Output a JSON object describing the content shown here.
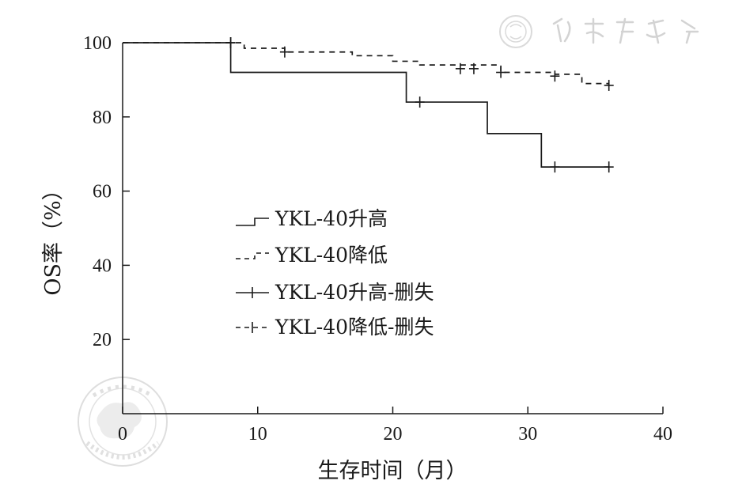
{
  "chart_data": {
    "type": "line",
    "xlabel": "生存时间（月）",
    "ylabel": "OS率（%）",
    "xlim": [
      0,
      40
    ],
    "ylim": [
      0,
      100
    ],
    "xticks": [
      0,
      10,
      20,
      30,
      40
    ],
    "yticks": [
      20,
      40,
      60,
      80,
      100
    ],
    "x_tick_labels": [
      "0",
      "10",
      "20",
      "30",
      "40"
    ],
    "y_tick_labels": [
      "20",
      "40",
      "60",
      "80",
      "100"
    ],
    "grid": false,
    "legend_position": "center-left",
    "series": [
      {
        "name": "YKL-40升高",
        "style": "solid-step",
        "color": "#1a1a1a",
        "x": [
          0,
          8,
          21,
          27,
          31,
          36
        ],
        "y": [
          100,
          92,
          84,
          75.5,
          66.5,
          66.5
        ]
      },
      {
        "name": "YKL-40降低",
        "style": "dashed-step",
        "color": "#1a1a1a",
        "x": [
          0,
          9,
          12,
          17,
          20,
          22,
          28,
          32,
          34,
          36
        ],
        "y": [
          100,
          98.5,
          97.5,
          96.5,
          95,
          94,
          92,
          91.5,
          89,
          88.5
        ]
      }
    ],
    "censored": [
      {
        "name": "YKL-40升高-删失",
        "series": 0,
        "x": [
          8,
          22,
          32,
          36
        ],
        "y": [
          100,
          84,
          66.5,
          66.5
        ]
      },
      {
        "name": "YKL-40降低-删失",
        "series": 1,
        "x": [
          8,
          12,
          25,
          26,
          28,
          32,
          36
        ],
        "y": [
          100,
          97.5,
          93,
          93,
          92,
          91,
          88.5
        ]
      }
    ]
  },
  "watermark": {
    "top_right_text": "中華醫學會",
    "seal_text": "中华医学会 CHINESE MEDICAL ASSOCIATION"
  }
}
